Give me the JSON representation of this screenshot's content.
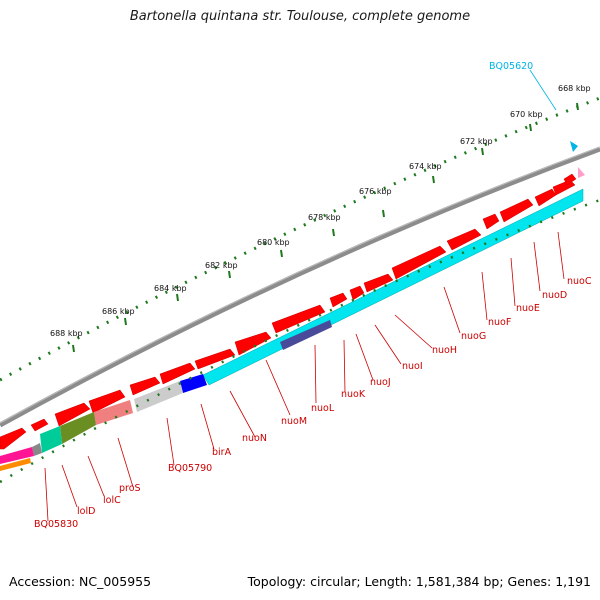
{
  "title": "Bartonella quintana str. Toulouse, complete genome",
  "footer": {
    "accession": "Accession: NC_005955",
    "summary": "Topology: circular; Length: 1,581,384 bp; Genes: 1,191"
  },
  "scale": {
    "ticks": [
      "688 kbp",
      "686 kbp",
      "684 kbp",
      "682 kbp",
      "680 kbp",
      "678 kbp",
      "676 kbp",
      "674 kbp",
      "672 kbp",
      "670 kbp",
      "668 kbp"
    ]
  },
  "colors": {
    "backbone": "#8c8c8c",
    "forward_gene": "#ff0000",
    "label_red": "#cc0000",
    "label_cyan": "#00b4e6",
    "tick_green": "#1f7a1f",
    "cyan": "#00e5ee",
    "blue": "#0000ff",
    "navy": "#4a4a9a",
    "grey": "#cccccc",
    "salmon": "#f08080",
    "olive": "#6b8e23",
    "teal": "#00cc99",
    "magenta": "#ff1493",
    "orange": "#ff8c00",
    "pink": "#ff9ec8"
  },
  "genes": [
    {
      "name": "BQ05620",
      "color": "label_cyan"
    },
    {
      "name": "nuoC"
    },
    {
      "name": "nuoD"
    },
    {
      "name": "nuoE"
    },
    {
      "name": "nuoF"
    },
    {
      "name": "nuoG"
    },
    {
      "name": "nuoH"
    },
    {
      "name": "nuoI"
    },
    {
      "name": "nuoJ"
    },
    {
      "name": "nuoK"
    },
    {
      "name": "nuoL"
    },
    {
      "name": "nuoM"
    },
    {
      "name": "nuoN"
    },
    {
      "name": "birA"
    },
    {
      "name": "BQ05790"
    },
    {
      "name": "proS"
    },
    {
      "name": "lolC"
    },
    {
      "name": "lolD"
    },
    {
      "name": "BQ05830"
    }
  ]
}
